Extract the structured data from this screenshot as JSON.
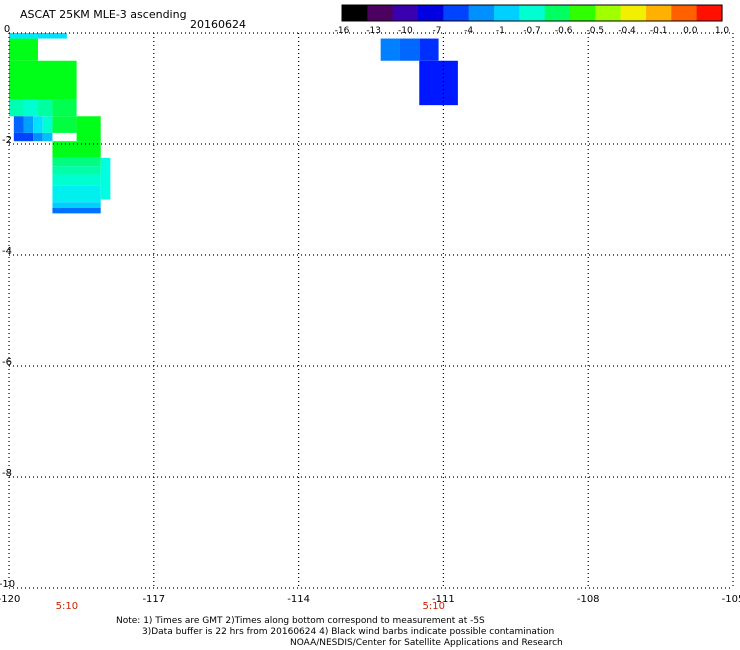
{
  "chart_data": {
    "type": "heatmap",
    "title": "ASCAT 25KM MLE-3 ascending",
    "date": "20160624",
    "x_ticks": [
      "-120",
      "-117",
      "-114",
      "-111",
      "-108",
      "-105"
    ],
    "y_ticks": [
      "0",
      "-2",
      "-4",
      "-6",
      "-8",
      "-10"
    ],
    "xlim": [
      -120,
      -105
    ],
    "ylim": [
      -10,
      0
    ],
    "grid": true,
    "time_labels": [
      {
        "x": -118.8,
        "label": "5:10"
      },
      {
        "x": -111.2,
        "label": "5:10"
      }
    ],
    "colorbar": {
      "ticks": [
        "-16",
        "-13",
        "-10",
        "-7",
        "-4",
        "-1",
        "-0.7",
        "-0.6",
        "-0.5",
        "-0.4",
        "-0.1",
        "0.0",
        "1.0"
      ],
      "colors": [
        "#000000",
        "#4c0060",
        "#3a00b0",
        "#0000e0",
        "#0044ff",
        "#0090ff",
        "#00d0ff",
        "#00ffd0",
        "#00ff60",
        "#30ff00",
        "#a0ff00",
        "#f0f000",
        "#ffb000",
        "#ff6000",
        "#ff1000"
      ]
    },
    "cells": [
      {
        "x0": -120.0,
        "x1": -119.4,
        "y0": 0.0,
        "y1": -0.1,
        "color": "#00e8ff"
      },
      {
        "x0": -119.4,
        "x1": -118.8,
        "y0": 0.0,
        "y1": -0.1,
        "color": "#00e0ff"
      },
      {
        "x0": -120.0,
        "x1": -119.4,
        "y0": -0.1,
        "y1": -0.5,
        "color": "#00ff18"
      },
      {
        "x0": -120.0,
        "x1": -118.6,
        "y0": -0.5,
        "y1": -1.2,
        "color": "#00ff18"
      },
      {
        "x0": -120.0,
        "x1": -119.7,
        "y0": -1.2,
        "y1": -1.5,
        "color": "#00ffb0"
      },
      {
        "x0": -119.7,
        "x1": -119.4,
        "y0": -1.2,
        "y1": -1.5,
        "color": "#00ffd0"
      },
      {
        "x0": -119.4,
        "x1": -119.1,
        "y0": -1.2,
        "y1": -1.5,
        "color": "#00ffa0"
      },
      {
        "x0": -119.1,
        "x1": -118.6,
        "y0": -1.2,
        "y1": -1.5,
        "color": "#00ff50"
      },
      {
        "x0": -119.9,
        "x1": -119.7,
        "y0": -1.5,
        "y1": -1.8,
        "color": "#0066ff"
      },
      {
        "x0": -119.7,
        "x1": -119.5,
        "y0": -1.5,
        "y1": -1.8,
        "color": "#00a0ff"
      },
      {
        "x0": -119.5,
        "x1": -119.3,
        "y0": -1.5,
        "y1": -1.8,
        "color": "#00e0ff"
      },
      {
        "x0": -119.3,
        "x1": -119.1,
        "y0": -1.5,
        "y1": -1.8,
        "color": "#00ffd0"
      },
      {
        "x0": -119.1,
        "x1": -118.6,
        "y0": -1.5,
        "y1": -1.8,
        "color": "#00ff40"
      },
      {
        "x0": -119.9,
        "x1": -119.5,
        "y0": -1.8,
        "y1": -1.95,
        "color": "#0044ff"
      },
      {
        "x0": -119.5,
        "x1": -119.3,
        "y0": -1.8,
        "y1": -1.95,
        "color": "#0090ff"
      },
      {
        "x0": -119.3,
        "x1": -119.1,
        "y0": -1.8,
        "y1": -1.95,
        "color": "#00c0ff"
      },
      {
        "x0": -118.6,
        "x1": -118.1,
        "y0": -1.5,
        "y1": -1.95,
        "color": "#00ff18"
      },
      {
        "x0": -119.1,
        "x1": -118.1,
        "y0": -1.95,
        "y1": -2.25,
        "color": "#00ff18"
      },
      {
        "x0": -118.1,
        "x1": -117.9,
        "y0": -2.25,
        "y1": -3.0,
        "color": "#00ffe0"
      },
      {
        "x0": -119.1,
        "x1": -118.1,
        "y0": -2.25,
        "y1": -2.4,
        "color": "#00ff80"
      },
      {
        "x0": -119.1,
        "x1": -118.1,
        "y0": -2.4,
        "y1": -2.55,
        "color": "#00ffa8"
      },
      {
        "x0": -119.1,
        "x1": -118.1,
        "y0": -2.55,
        "y1": -2.75,
        "color": "#00ffd0"
      },
      {
        "x0": -119.1,
        "x1": -118.1,
        "y0": -2.75,
        "y1": -3.05,
        "color": "#00f0f0"
      },
      {
        "x0": -119.1,
        "x1": -118.1,
        "y0": -3.05,
        "y1": -3.15,
        "color": "#00d0ff"
      },
      {
        "x0": -119.1,
        "x1": -118.1,
        "y0": -3.15,
        "y1": -3.25,
        "color": "#0070ff"
      },
      {
        "x0": -112.3,
        "x1": -111.9,
        "y0": -0.1,
        "y1": -0.5,
        "color": "#0080ff"
      },
      {
        "x0": -111.9,
        "x1": -111.5,
        "y0": -0.1,
        "y1": -0.5,
        "color": "#0068ff"
      },
      {
        "x0": -111.5,
        "x1": -111.1,
        "y0": -0.1,
        "y1": -0.5,
        "color": "#0030ff"
      },
      {
        "x0": -111.5,
        "x1": -110.7,
        "y0": -0.5,
        "y1": -1.3,
        "color": "#0018ff"
      }
    ]
  },
  "notes": {
    "line1": "Note: 1) Times are GMT 2)Times along bottom correspond to measurement at -5S",
    "line2": "3)Data buffer is 22 hrs from 20160624 4) Black wind barbs indicate possible contamination",
    "line3": "NOAA/NESDIS/Center for Satellite Applications and Research"
  }
}
